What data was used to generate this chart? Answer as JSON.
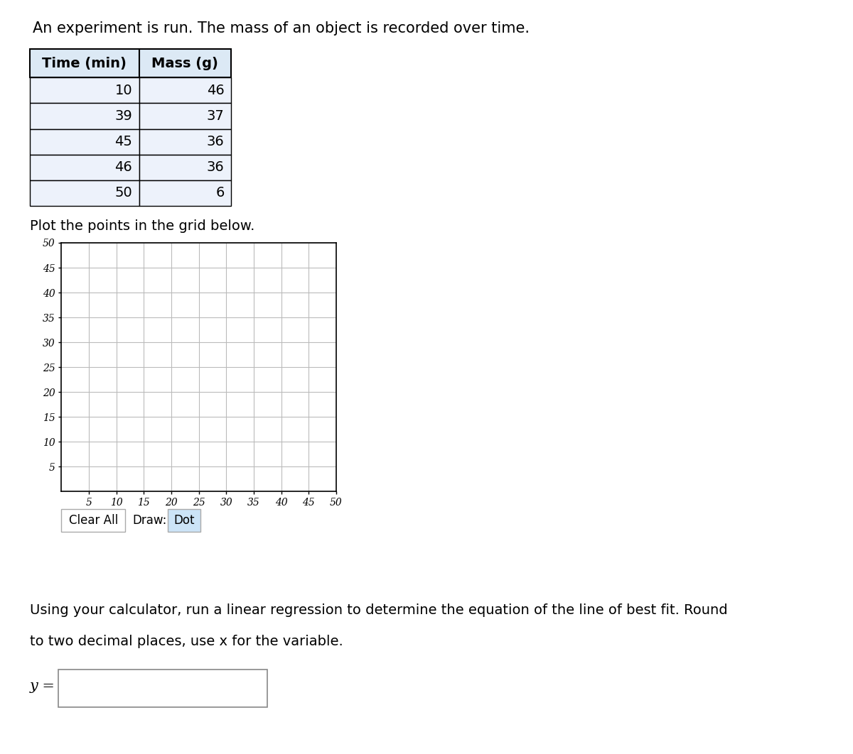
{
  "title": "An experiment is run. The mass of an object is recorded over time.",
  "table_headers": [
    "Time (min)",
    "Mass (g)"
  ],
  "table_data": [
    [
      10,
      46
    ],
    [
      39,
      37
    ],
    [
      45,
      36
    ],
    [
      46,
      36
    ],
    [
      50,
      6
    ]
  ],
  "table_header_bg": "#dce9f5",
  "table_row_bg": "#edf2fb",
  "plot_instruction": "Plot the points in the grid below.",
  "x_ticks": [
    5,
    10,
    15,
    20,
    25,
    30,
    35,
    40,
    45,
    50
  ],
  "y_ticks": [
    5,
    10,
    15,
    20,
    25,
    30,
    35,
    40,
    45,
    50
  ],
  "x_min": 0,
  "x_max": 50,
  "y_min": 0,
  "y_max": 50,
  "grid_color": "#bbbbbb",
  "axis_color": "#000000",
  "clear_all_label": "Clear All",
  "draw_label": "Draw:",
  "dot_label": "Dot",
  "regression_text1": "Using your calculator, run a linear regression to determine the equation of the line of best fit. Round",
  "regression_text2": "to two decimal places, use x for the variable.",
  "y_equals_label": "y =",
  "fig_bg": "#ffffff",
  "font_size_title": 15,
  "font_size_table_header": 14,
  "font_size_table_data": 14,
  "font_size_plot_instr": 14,
  "font_size_axis_ticks": 10,
  "font_size_regression": 14,
  "font_size_y_eq": 15,
  "font_size_btn": 12
}
